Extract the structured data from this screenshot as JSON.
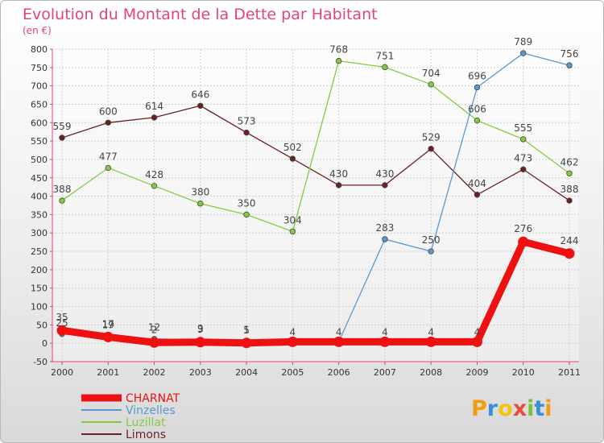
{
  "chart_data": {
    "type": "line",
    "title": "Evolution du Montant de la Dette par Habitant",
    "subtitle": "(en €)",
    "xlabel": "",
    "ylabel": "",
    "x": [
      "2000",
      "2001",
      "2002",
      "2003",
      "2004",
      "2005",
      "2006",
      "2007",
      "2008",
      "2009",
      "2010",
      "2011"
    ],
    "ylim": [
      -50,
      800
    ],
    "yticks": [
      -50,
      0,
      50,
      100,
      150,
      200,
      250,
      300,
      350,
      400,
      450,
      500,
      550,
      600,
      650,
      700,
      750,
      800
    ],
    "grid": true,
    "legend_position": "bottom-left",
    "series": [
      {
        "name": "Limons",
        "color": "#6b1f22",
        "values": [
          559,
          600,
          614,
          646,
          573,
          502,
          430,
          430,
          529,
          404,
          473,
          388
        ],
        "labels": [
          "559",
          "600",
          "614",
          "646",
          "573",
          "502",
          "430",
          "430",
          "529",
          "404",
          "473",
          "388"
        ]
      },
      {
        "name": "Luzillat",
        "color": "#84cc3e",
        "values": [
          388,
          477,
          428,
          380,
          350,
          304,
          768,
          751,
          704,
          606,
          555,
          462
        ],
        "labels": [
          "388",
          "477",
          "428",
          "380",
          "350",
          "304",
          "768",
          "751",
          "704",
          "606",
          "555",
          "462"
        ]
      },
      {
        "name": "Vinzelles",
        "color": "#5a98cf",
        "values": [
          25,
          19,
          12,
          9,
          5,
          4,
          4,
          283,
          250,
          696,
          789,
          756
        ],
        "labels": [
          "25",
          "19",
          "12",
          "9",
          "5",
          "",
          "",
          "283",
          "250",
          "696",
          "789",
          "756"
        ]
      },
      {
        "name": "CHARNAT",
        "color": "#ee1111",
        "values": [
          35,
          17,
          2,
          3,
          1,
          4,
          4,
          4,
          4,
          4,
          276,
          244
        ],
        "labels": [
          "35",
          "17",
          "2",
          "3",
          "1",
          "4",
          "4",
          "4",
          "4",
          "4",
          "276",
          "244"
        ]
      }
    ],
    "legend_order": [
      "CHARNAT",
      "Vinzelles",
      "Luzillat",
      "Limons"
    ]
  },
  "watermark": {
    "text": "Proxiti",
    "letters": [
      "P",
      "r",
      "o",
      "x",
      "i",
      "t",
      "i"
    ]
  }
}
